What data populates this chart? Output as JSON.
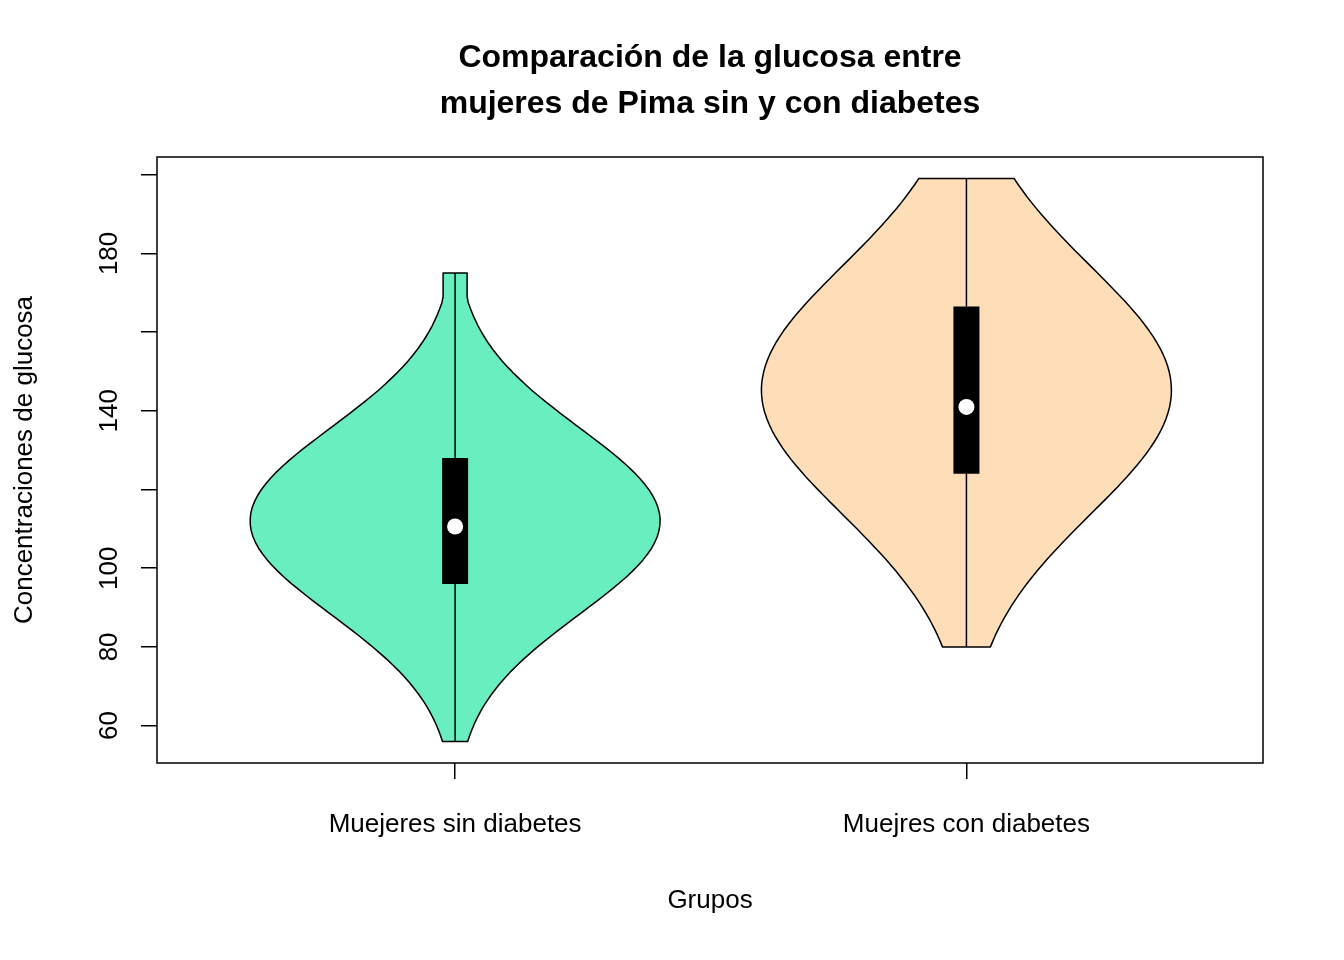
{
  "chart_data": {
    "type": "box",
    "title": "Comparación de la glucosa entre\nmujeres de Pima sin y con diabetes",
    "xlabel": "Grupos",
    "ylabel": "Concentraciones de glucosa",
    "categories": [
      "Muejeres sin diabetes",
      "Muejres con diabetes"
    ],
    "boxes": [
      {
        "low": 56,
        "q1": 96,
        "median": 110.6,
        "q3": 128,
        "high": 175
      },
      {
        "low": 80,
        "q1": 124,
        "median": 141,
        "q3": 166.5,
        "high": 199
      }
    ],
    "ylim": [
      50.5,
      204.5
    ],
    "yticks": [
      60,
      80,
      100,
      {
        "value": 120,
        "label": null
      },
      140,
      {
        "value": 160,
        "label": null
      },
      180,
      {
        "value": 200,
        "label": null
      }
    ],
    "grid": false,
    "legend": false
  }
}
